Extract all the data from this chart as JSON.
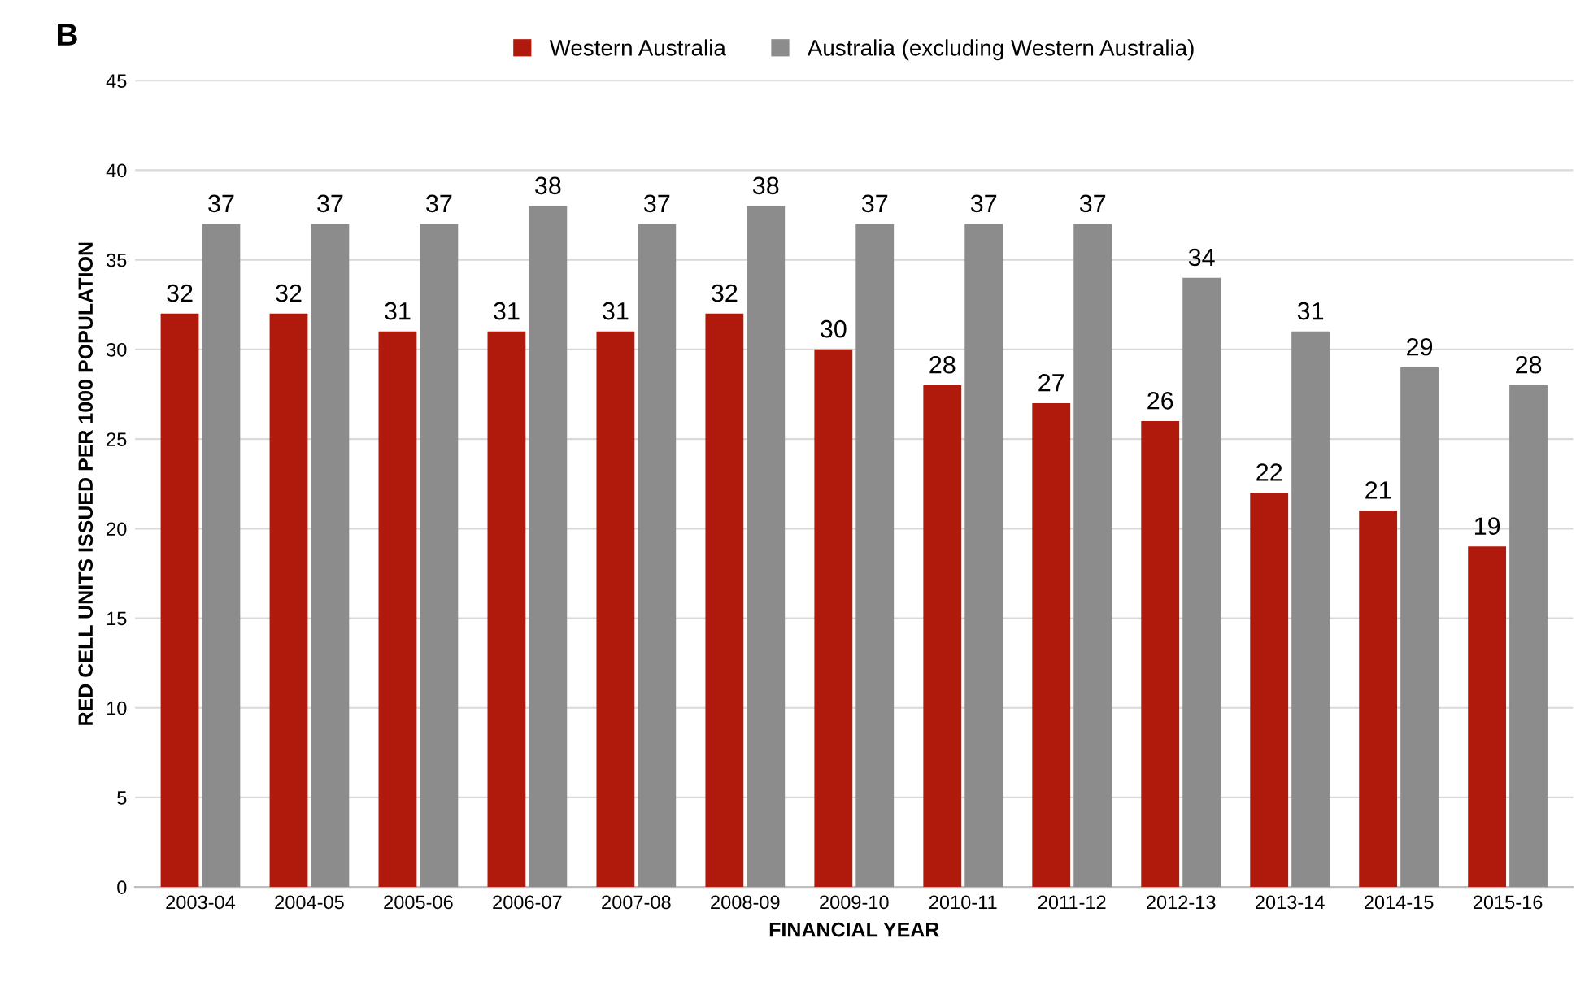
{
  "chart_data": {
    "type": "bar",
    "xlabel": "FINANCIAL YEAR",
    "ylabel": "RED CELL UNITS ISSUED PER 1000 POPULATION",
    "annotations": [
      "B"
    ],
    "categories": [
      "2003-04",
      "2004-05",
      "2005-06",
      "2006-07",
      "2007-08",
      "2008-09",
      "2009-10",
      "2010-11",
      "2011-12",
      "2012-13",
      "2013-14",
      "2014-15",
      "2015-16"
    ],
    "series": [
      {
        "name": "Western Australia",
        "color": "#b01a0c",
        "values": [
          32,
          32,
          31,
          31,
          31,
          32,
          30,
          28,
          27,
          26,
          22,
          21,
          19
        ]
      },
      {
        "name": "Australia (excluding Western Australia)",
        "color": "#8c8c8c",
        "values": [
          37,
          37,
          37,
          38,
          37,
          38,
          37,
          37,
          37,
          34,
          31,
          29,
          28
        ]
      }
    ],
    "ylim": [
      0,
      45
    ],
    "yticks": [
      0,
      5,
      10,
      15,
      20,
      25,
      30,
      35,
      40,
      45
    ],
    "grid": "y",
    "legend": "top",
    "data_labels": true
  }
}
